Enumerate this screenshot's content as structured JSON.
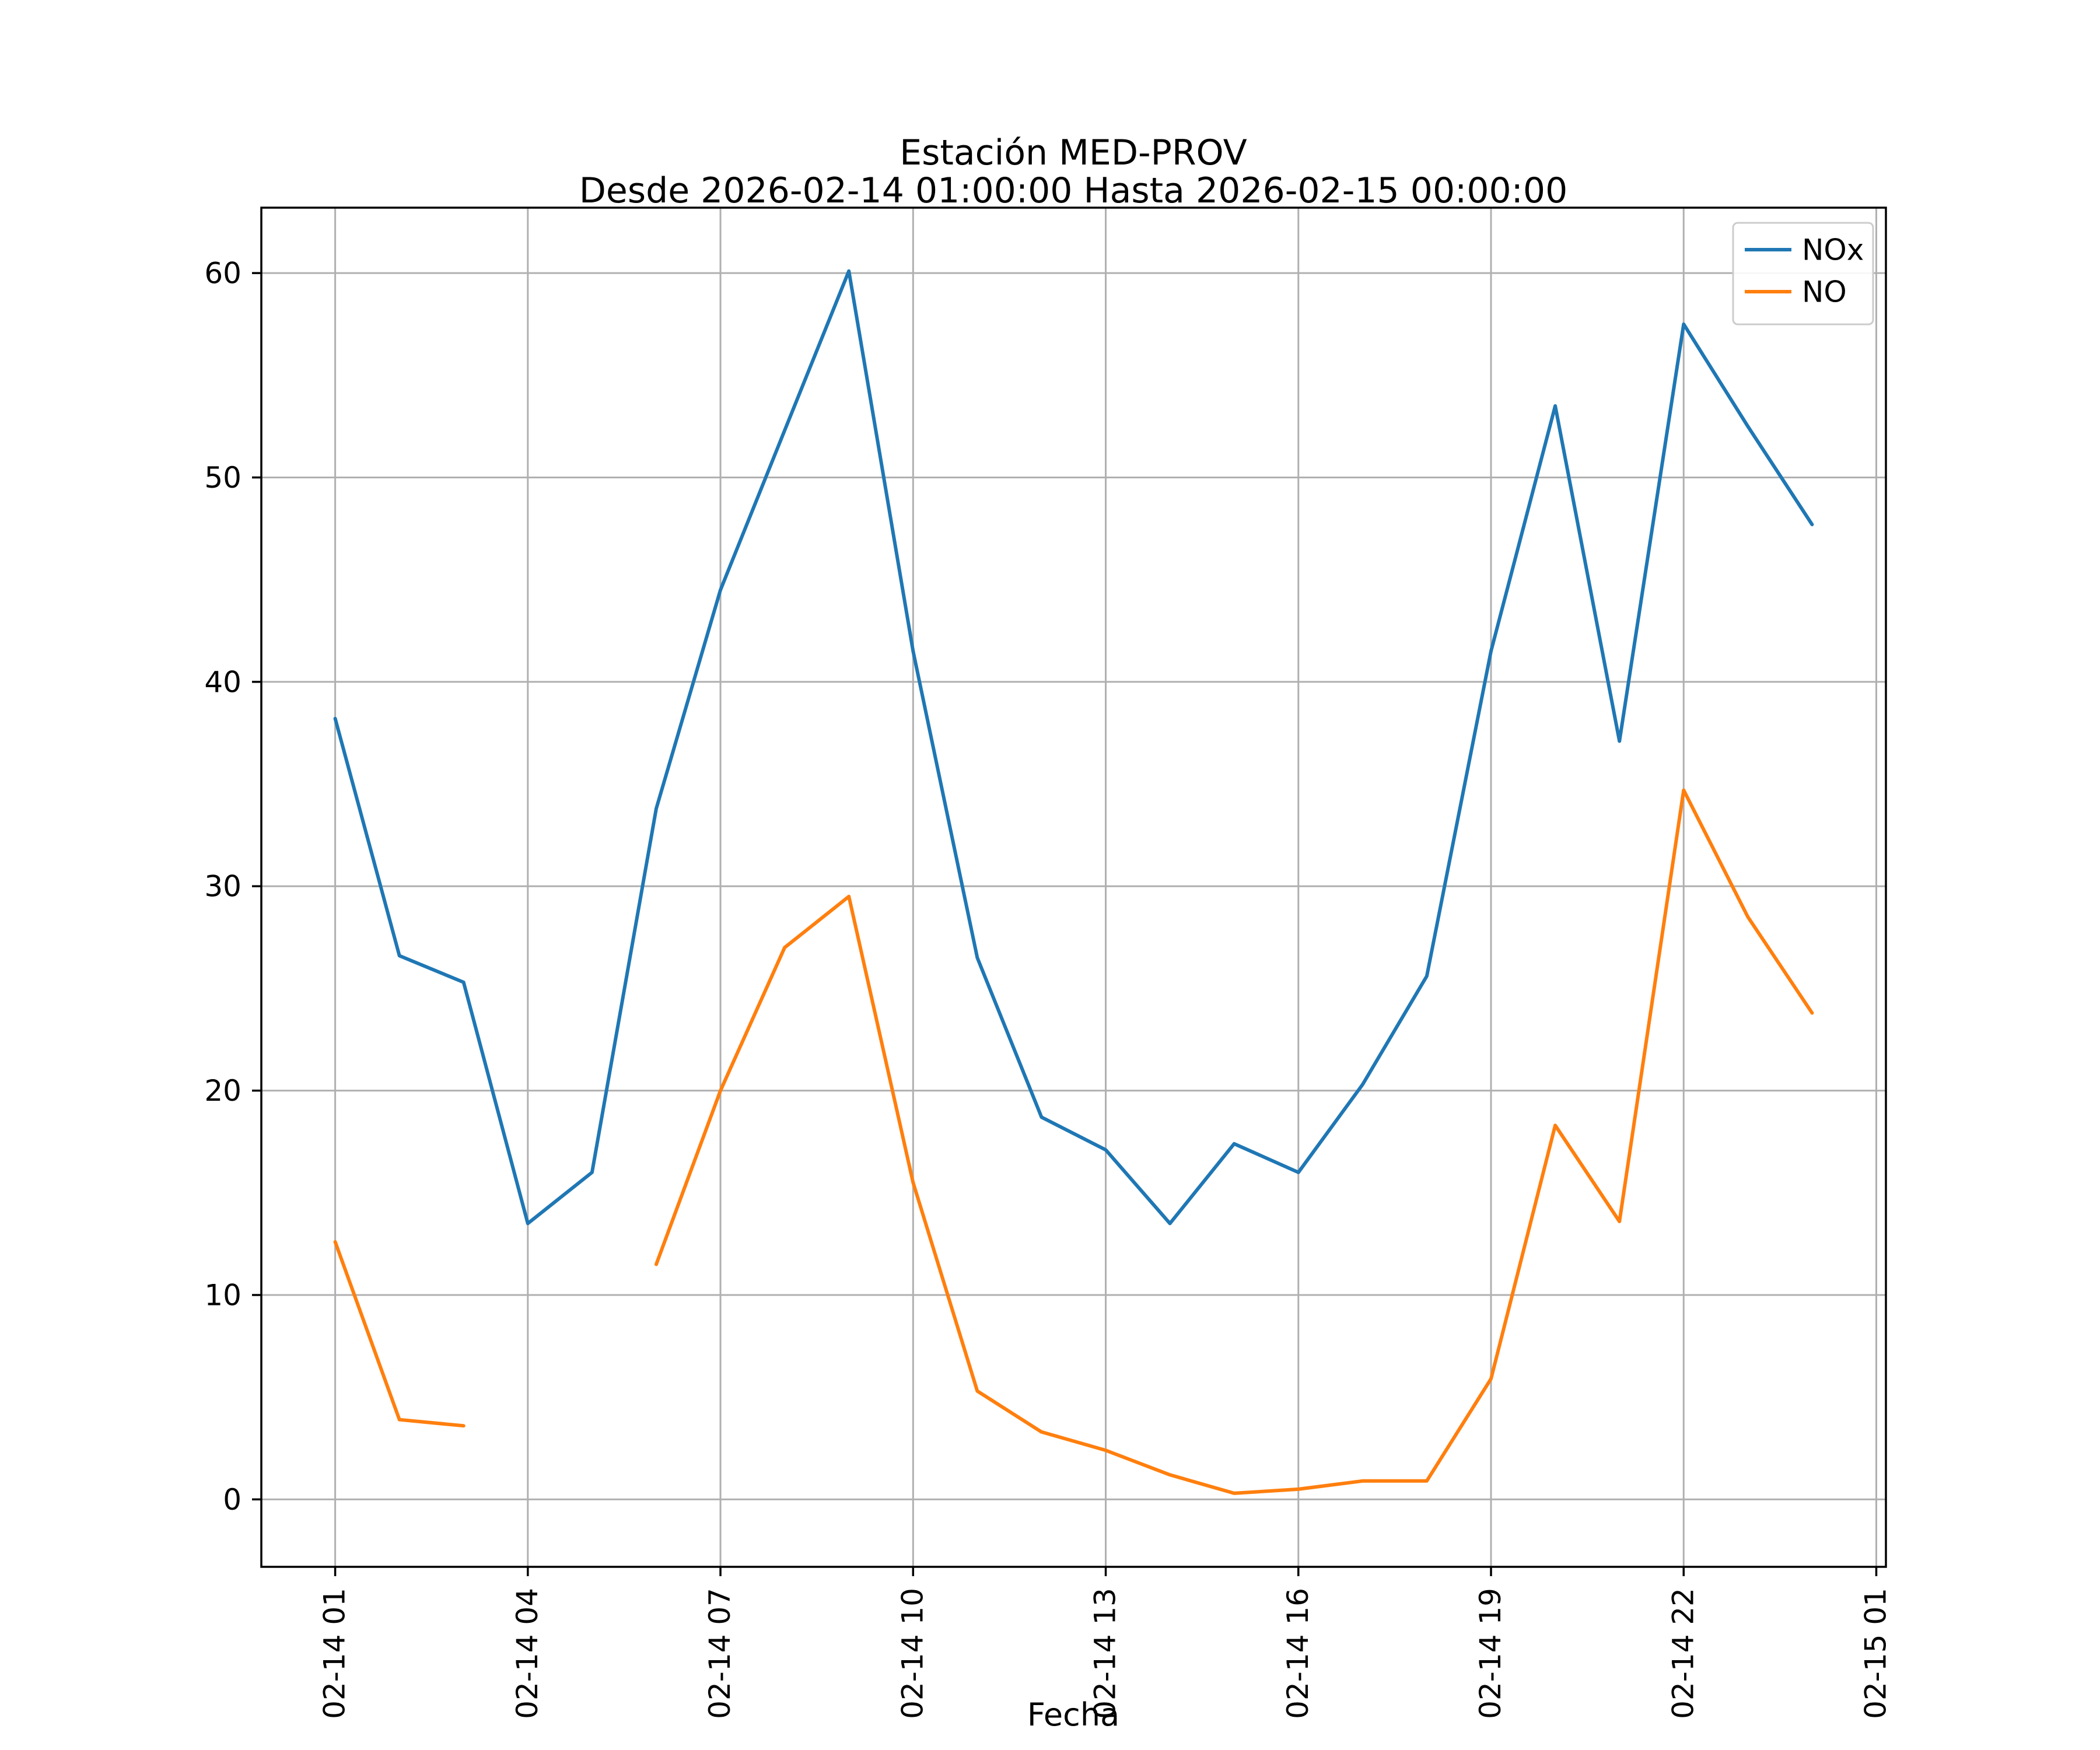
{
  "chart_data": {
    "type": "line",
    "title": "Estación MED-PROV",
    "subtitle": "Desde 2026-02-14 01:00:00 Hasta 2026-02-15 00:00:00",
    "xlabel": "Fecha",
    "ylabel": "",
    "x_hours": [
      1,
      2,
      3,
      4,
      5,
      6,
      7,
      8,
      9,
      10,
      11,
      12,
      13,
      14,
      15,
      16,
      17,
      18,
      19,
      20,
      21,
      22,
      23,
      24
    ],
    "series": [
      {
        "name": "NOx",
        "color": "#1f77b4",
        "values": [
          38.2,
          26.6,
          25.3,
          13.5,
          16.0,
          33.8,
          44.5,
          52.3,
          60.1,
          41.5,
          26.5,
          18.7,
          17.1,
          13.5,
          17.4,
          16.0,
          20.3,
          25.6,
          41.5,
          53.5,
          37.1,
          57.5,
          52.5,
          47.7
        ]
      },
      {
        "name": "NO",
        "color": "#ff7f0e",
        "values": [
          12.6,
          3.9,
          3.6,
          null,
          null,
          11.5,
          20.0,
          27.0,
          29.5,
          15.5,
          5.3,
          3.3,
          2.4,
          1.2,
          0.3,
          0.5,
          0.9,
          0.9,
          5.9,
          18.3,
          13.6,
          34.7,
          28.5,
          23.8
        ]
      }
    ],
    "x_ticks": {
      "hours": [
        1,
        4,
        7,
        10,
        13,
        16,
        19,
        22,
        25
      ],
      "labels": [
        "02-14 01",
        "02-14 04",
        "02-14 07",
        "02-14 10",
        "02-14 13",
        "02-14 16",
        "02-14 19",
        "02-14 22",
        "02-15 01"
      ]
    },
    "y_ticks": [
      0,
      10,
      20,
      30,
      40,
      50,
      60
    ],
    "xlim": [
      -0.15,
      25.15
    ],
    "ylim": [
      -3.3,
      63.2
    ],
    "grid": true,
    "grid_color": "#b0b0b0",
    "axis_color": "#000000",
    "legend_position": "upper right",
    "legend_border_color": "#cccccc",
    "legend_background": "#ffffff"
  }
}
